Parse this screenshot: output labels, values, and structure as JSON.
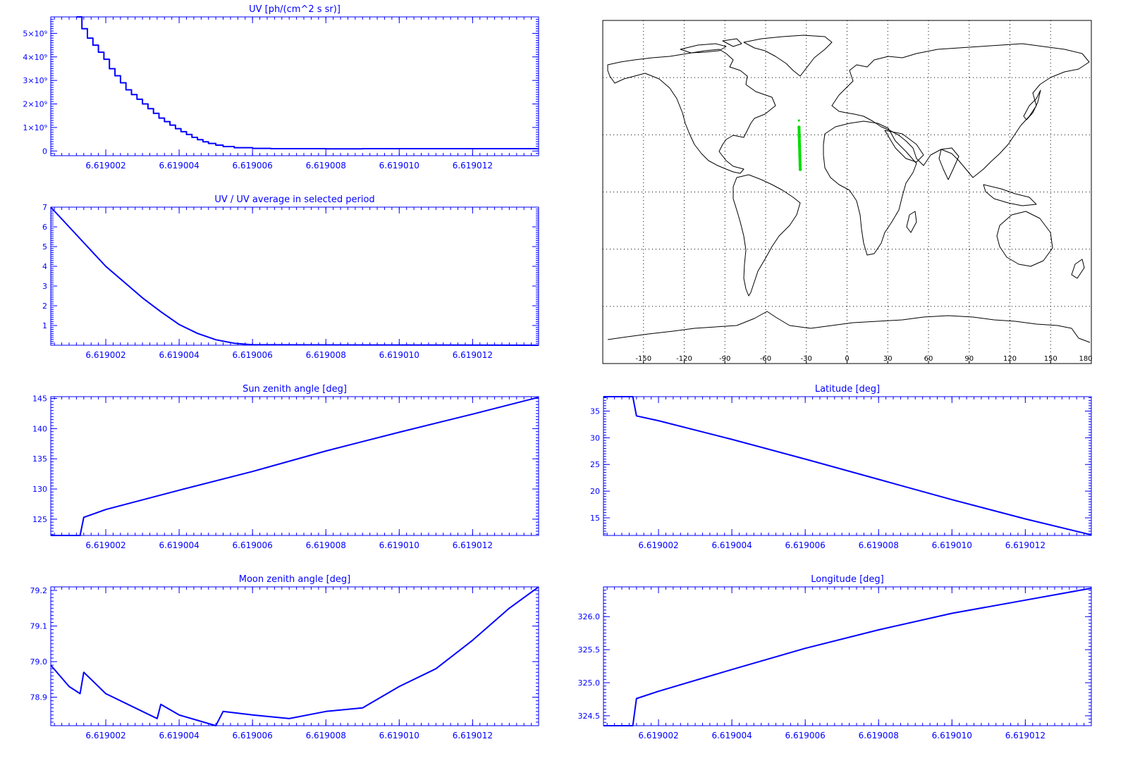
{
  "colors": {
    "axis": "#0000ff",
    "line": "#0000ff",
    "track": "#00dd00",
    "map_frame": "#000000",
    "coast": "#000000",
    "background": "#ffffff"
  },
  "chart_data": [
    {
      "id": "uv",
      "type": "line",
      "step": true,
      "title": "UV [ph/(cm^2 s sr)]",
      "xlim": [
        6.6190005,
        6.6190138
      ],
      "ylim": [
        -200000000,
        5700000000
      ],
      "xticks": [
        "6.619002",
        "6.619004",
        "6.619006",
        "6.619008",
        "6.619010",
        "6.619012"
      ],
      "yticks": [
        {
          "value": 0,
          "label": "0"
        },
        {
          "value": 1000000000,
          "label": "1×10⁹"
        },
        {
          "value": 2000000000,
          "label": "2×10⁹"
        },
        {
          "value": 3000000000,
          "label": "3×10⁹"
        },
        {
          "value": 4000000000,
          "label": "4×10⁹"
        },
        {
          "value": 5000000000,
          "label": "5×10⁹"
        }
      ],
      "series": [
        {
          "x": [
            6.6190012,
            6.61900135,
            6.6190015,
            6.61900165,
            6.6190018,
            6.61900195,
            6.6190021,
            6.61900225,
            6.6190024,
            6.61900255,
            6.6190027,
            6.61900285,
            6.619003,
            6.61900315,
            6.6190033,
            6.61900345,
            6.6190036,
            6.61900375,
            6.6190039,
            6.61900405,
            6.6190042,
            6.61900435,
            6.6190045,
            6.61900465,
            6.6190048,
            6.619005,
            6.6190052,
            6.6190055,
            6.619006,
            6.6190065,
            6.619007,
            6.619008,
            6.619009,
            6.61901,
            6.619011,
            6.619012,
            6.6190138
          ],
          "y": [
            5700000000,
            5200000000,
            4800000000,
            4500000000,
            4200000000,
            3900000000,
            3500000000,
            3200000000,
            2900000000,
            2600000000,
            2400000000,
            2200000000,
            2000000000,
            1800000000,
            1600000000,
            1400000000,
            1250000000,
            1100000000,
            950000000,
            820000000,
            700000000,
            580000000,
            480000000,
            390000000,
            320000000,
            250000000,
            190000000,
            140000000,
            110000000,
            100000000,
            100000000,
            90000000,
            100000000,
            100000000,
            100000000,
            100000000,
            100000000
          ]
        }
      ]
    },
    {
      "id": "uv-ratio",
      "type": "line",
      "title": "UV / UV average in selected period",
      "xlim": [
        6.6190005,
        6.6190138
      ],
      "ylim": [
        0,
        7
      ],
      "xticks": [
        "6.619002",
        "6.619004",
        "6.619006",
        "6.619008",
        "6.619010",
        "6.619012"
      ],
      "yticks": [
        {
          "value": 1,
          "label": "1"
        },
        {
          "value": 2,
          "label": "2"
        },
        {
          "value": 3,
          "label": "3"
        },
        {
          "value": 4,
          "label": "4"
        },
        {
          "value": 5,
          "label": "5"
        },
        {
          "value": 6,
          "label": "6"
        },
        {
          "value": 7,
          "label": "7"
        }
      ],
      "series": [
        {
          "x": [
            6.6190005,
            6.619001,
            6.6190015,
            6.619002,
            6.6190025,
            6.619003,
            6.6190035,
            6.619004,
            6.6190045,
            6.619005,
            6.6190055,
            6.619006,
            6.6190138
          ],
          "y": [
            7.0,
            6.0,
            5.0,
            4.0,
            3.2,
            2.4,
            1.7,
            1.05,
            0.6,
            0.28,
            0.1,
            0.02,
            0.0
          ]
        }
      ]
    },
    {
      "id": "sun-zenith",
      "type": "line",
      "title": "Sun zenith angle [deg]",
      "xlim": [
        6.6190005,
        6.6190138
      ],
      "ylim": [
        122.3,
        145.3
      ],
      "xticks": [
        "6.619002",
        "6.619004",
        "6.619006",
        "6.619008",
        "6.619010",
        "6.619012"
      ],
      "yticks": [
        {
          "value": 125,
          "label": "125"
        },
        {
          "value": 130,
          "label": "130"
        },
        {
          "value": 135,
          "label": "135"
        },
        {
          "value": 140,
          "label": "140"
        },
        {
          "value": 145,
          "label": "145"
        }
      ],
      "series": [
        {
          "x": [
            6.6190005,
            6.6190013,
            6.6190014,
            6.619002,
            6.619004,
            6.619006,
            6.619008,
            6.61901,
            6.619012,
            6.6190138
          ],
          "y": [
            122.3,
            122.3,
            125.3,
            126.6,
            129.8,
            132.9,
            136.3,
            139.4,
            142.4,
            145.2
          ]
        }
      ]
    },
    {
      "id": "latitude",
      "type": "line",
      "title": "Latitude [deg]",
      "xlim": [
        6.6190005,
        6.6190138
      ],
      "ylim": [
        11.7,
        37.7
      ],
      "xticks": [
        "6.619002",
        "6.619004",
        "6.619006",
        "6.619008",
        "6.619010",
        "6.619012"
      ],
      "yticks": [
        {
          "value": 15,
          "label": "15"
        },
        {
          "value": 20,
          "label": "20"
        },
        {
          "value": 25,
          "label": "25"
        },
        {
          "value": 30,
          "label": "30"
        },
        {
          "value": 35,
          "label": "35"
        }
      ],
      "series": [
        {
          "x": [
            6.6190005,
            6.6190013,
            6.6190014,
            6.619002,
            6.619004,
            6.619006,
            6.619008,
            6.61901,
            6.619012,
            6.6190138
          ],
          "y": [
            37.7,
            37.7,
            34.1,
            33.2,
            29.7,
            26.0,
            22.2,
            18.4,
            14.8,
            11.8
          ]
        }
      ]
    },
    {
      "id": "moon-zenith",
      "type": "line",
      "title": "Moon zenith angle [deg]",
      "xlim": [
        6.6190005,
        6.6190138
      ],
      "ylim": [
        78.82,
        79.21
      ],
      "xticks": [
        "6.619002",
        "6.619004",
        "6.619006",
        "6.619008",
        "6.619010",
        "6.619012"
      ],
      "yticks": [
        {
          "value": 78.9,
          "label": "78.9"
        },
        {
          "value": 79.0,
          "label": "79.0"
        },
        {
          "value": 79.1,
          "label": "79.1"
        },
        {
          "value": 79.2,
          "label": "79.2"
        }
      ],
      "series": [
        {
          "x": [
            6.6190005,
            6.619001,
            6.6190013,
            6.6190014,
            6.619002,
            6.619003,
            6.6190034,
            6.6190035,
            6.619004,
            6.619005,
            6.6190052,
            6.619006,
            6.619007,
            6.619008,
            6.619009,
            6.61901,
            6.619011,
            6.619012,
            6.619013,
            6.6190138
          ],
          "y": [
            78.99,
            78.93,
            78.91,
            78.97,
            78.91,
            78.86,
            78.84,
            78.88,
            78.85,
            78.82,
            78.86,
            78.85,
            78.84,
            78.86,
            78.87,
            78.93,
            78.98,
            79.06,
            79.15,
            79.21
          ]
        }
      ]
    },
    {
      "id": "longitude",
      "type": "line",
      "title": "Longitude [deg]",
      "xlim": [
        6.6190005,
        6.6190138
      ],
      "ylim": [
        324.35,
        326.45
      ],
      "xticks": [
        "6.619002",
        "6.619004",
        "6.619006",
        "6.619008",
        "6.619010",
        "6.619012"
      ],
      "yticks": [
        {
          "value": 324.5,
          "label": "324.5"
        },
        {
          "value": 325.0,
          "label": "325.0"
        },
        {
          "value": 325.5,
          "label": "325.5"
        },
        {
          "value": 326.0,
          "label": "326.0"
        }
      ],
      "series": [
        {
          "x": [
            6.6190005,
            6.6190013,
            6.6190014,
            6.619002,
            6.619004,
            6.619006,
            6.619008,
            6.61901,
            6.619012,
            6.6190138
          ],
          "y": [
            324.35,
            324.35,
            324.76,
            324.87,
            325.2,
            325.52,
            325.8,
            326.05,
            326.25,
            326.43
          ]
        }
      ]
    },
    {
      "id": "map",
      "type": "scatter",
      "xlim": [
        -180,
        180
      ],
      "ylim": [
        -90,
        90
      ],
      "xticks": [
        "-150",
        "-120",
        "-90",
        "-60",
        "-30",
        "0",
        "30",
        "60",
        "90",
        "120",
        "150",
        "180"
      ],
      "track": [
        {
          "lon": -35.5,
          "lat": 37.5
        },
        {
          "lon": -35.4,
          "lat": 34.0
        },
        {
          "lon": -35.2,
          "lat": 29.0
        },
        {
          "lon": -35.0,
          "lat": 24.0
        },
        {
          "lon": -34.8,
          "lat": 19.0
        },
        {
          "lon": -34.6,
          "lat": 14.0
        },
        {
          "lon": -34.5,
          "lat": 11.8
        }
      ]
    }
  ]
}
